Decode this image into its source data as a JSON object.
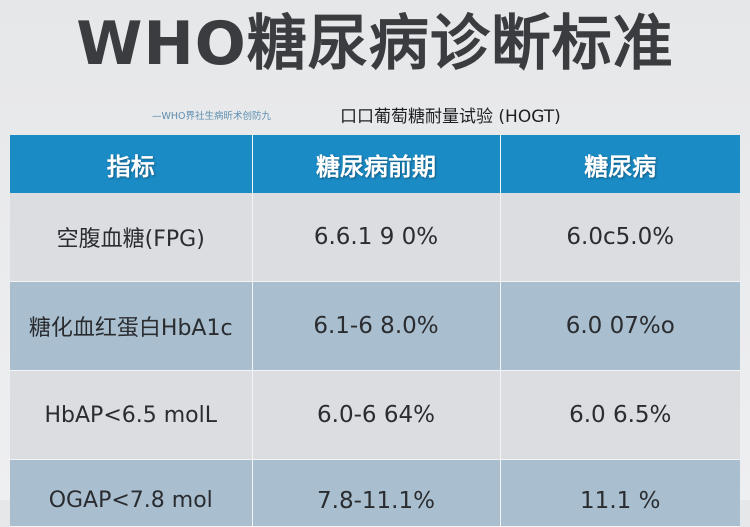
{
  "title": "WHO糖尿病诊断标准",
  "subtitle_small": "—WHO界社生病昕术创防九",
  "subtitle_main": "口口葡萄糖耐量试验 (HOGT)",
  "table": {
    "headers": [
      "指标",
      "糖尿病前期",
      "糖尿病"
    ],
    "rows": [
      [
        "空腹血糖(FPG)",
        "6.6.1 9  0%",
        "6.0c5.0%"
      ],
      [
        "糖化血红蛋白HbA1c",
        "6.1-6  8.0%",
        "6.0  07%o"
      ],
      [
        "HbAP<6.5 molL",
        "6.0-6  64%",
        "6.0  6.5%"
      ],
      [
        "OGAP<7.8 mol",
        "7.8-11.1%",
        "11.1 %"
      ]
    ]
  },
  "colors": {
    "header": "#1b8bc5",
    "row_light": "#dcdde0",
    "row_blue": "#a9bfcf",
    "title": "#3a3c40"
  }
}
